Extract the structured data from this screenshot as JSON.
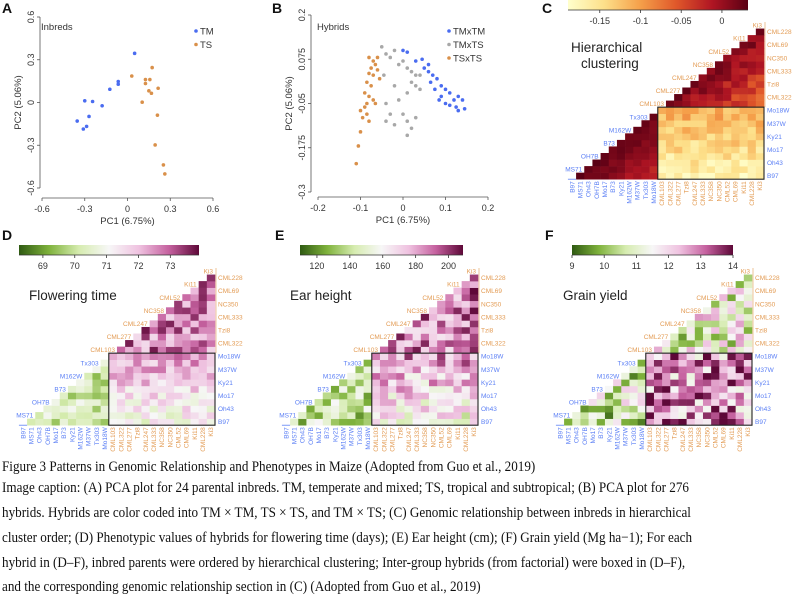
{
  "figure": {
    "panel_letters": [
      "A",
      "B",
      "C",
      "D",
      "E",
      "F"
    ],
    "colors": {
      "tm": "#4a6cf0",
      "ts": "#d9904a",
      "mixed": "#a8a8a8",
      "tm_label": "#5b7ff5",
      "ts_label": "#e39c55"
    }
  },
  "chart_data": [
    {
      "type": "scatter",
      "panel": "A",
      "title": "Inbreds",
      "xlabel": "PC1 (6.75%)",
      "ylabel": "PC2 (5.06%)",
      "xlim": [
        -0.6,
        0.6
      ],
      "ylim": [
        -0.6,
        0.6
      ],
      "xticks": [
        "-0.6",
        "-0.3",
        "0",
        "0.3",
        "0.6"
      ],
      "yticks": [
        "-0.6",
        "-0.3",
        "0",
        "0.3",
        "0.6"
      ],
      "legend": "top-right",
      "series": [
        {
          "name": "TM",
          "color": "#4a6cf0",
          "points": [
            [
              0.05,
              0.345
            ],
            [
              -0.065,
              0.147
            ],
            [
              -0.065,
              0.128
            ],
            [
              -0.124,
              0.093
            ],
            [
              -0.3,
              0.012
            ],
            [
              -0.245,
              0.007
            ],
            [
              -0.178,
              -0.023
            ],
            [
              -0.27,
              -0.098
            ],
            [
              -0.353,
              -0.13
            ],
            [
              -0.287,
              -0.168
            ],
            [
              -0.31,
              -0.186
            ]
          ]
        },
        {
          "name": "TS",
          "color": "#d9904a",
          "points": [
            [
              0.03,
              0.186
            ],
            [
              0.173,
              0.245
            ],
            [
              0.126,
              0.161
            ],
            [
              0.157,
              0.161
            ],
            [
              0.126,
              0.133
            ],
            [
              0.215,
              0.1
            ],
            [
              0.15,
              0.082
            ],
            [
              0.168,
              0.065
            ],
            [
              0.103,
              0.002
            ],
            [
              0.21,
              -0.089
            ],
            [
              0.194,
              -0.298
            ],
            [
              0.252,
              -0.438
            ],
            [
              0.262,
              -0.501
            ]
          ]
        }
      ]
    },
    {
      "type": "scatter",
      "panel": "B",
      "title": "Hybrids",
      "xlabel": "PC1 (6.75%)",
      "ylabel": "PC2 (5.06%)",
      "xlim": [
        -0.2,
        0.2
      ],
      "ylim": [
        -0.3,
        0.2
      ],
      "xticks": [
        "-0.2",
        "-0.1",
        "0",
        "0.1",
        "0.2"
      ],
      "yticks": [
        "-0.3",
        "-0.175",
        "-0.05",
        "0.075",
        "0.2"
      ],
      "legend": "top-right",
      "series": [
        {
          "name": "TMxTM",
          "color": "#4a6cf0",
          "points": [
            [
              0.0,
              0.1
            ],
            [
              0.01,
              0.095
            ],
            [
              0.03,
              0.07
            ],
            [
              0.045,
              0.075
            ],
            [
              0.05,
              0.05
            ],
            [
              0.06,
              0.04
            ],
            [
              0.07,
              0.03
            ],
            [
              0.065,
              0.01
            ],
            [
              0.08,
              0.02
            ],
            [
              0.09,
              0.0
            ],
            [
              0.075,
              -0.01
            ],
            [
              0.1,
              -0.01
            ],
            [
              0.09,
              -0.03
            ],
            [
              0.11,
              -0.02
            ],
            [
              0.12,
              -0.04
            ],
            [
              0.13,
              -0.03
            ],
            [
              0.1,
              -0.05
            ],
            [
              0.125,
              -0.06
            ],
            [
              0.14,
              -0.04
            ],
            [
              0.13,
              -0.07
            ],
            [
              0.145,
              -0.065
            ],
            [
              0.06,
              0.06
            ],
            [
              0.085,
              -0.04
            ],
            [
              0.11,
              -0.055
            ]
          ]
        },
        {
          "name": "TMxTS",
          "color": "#a8a8a8",
          "points": [
            [
              -0.05,
              0.11
            ],
            [
              -0.04,
              0.09
            ],
            [
              -0.02,
              0.1
            ],
            [
              -0.03,
              0.08
            ],
            [
              -0.01,
              0.06
            ],
            [
              0.0,
              0.07
            ],
            [
              0.01,
              0.05
            ],
            [
              0.02,
              0.04
            ],
            [
              0.03,
              0.03
            ],
            [
              0.04,
              0.03
            ],
            [
              0.02,
              0.01
            ],
            [
              0.03,
              0.0
            ],
            [
              0.04,
              -0.01
            ],
            [
              0.01,
              -0.02
            ],
            [
              -0.01,
              -0.04
            ],
            [
              -0.04,
              -0.05
            ],
            [
              -0.03,
              -0.08
            ],
            [
              -0.04,
              -0.1
            ],
            [
              0.0,
              -0.08
            ],
            [
              0.01,
              -0.1
            ],
            [
              0.02,
              -0.12
            ],
            [
              0.01,
              -0.14
            ],
            [
              -0.02,
              -0.11
            ],
            [
              0.03,
              -0.09
            ],
            [
              -0.045,
              0.03
            ],
            [
              -0.02,
              0.0
            ]
          ]
        },
        {
          "name": "TSxTS",
          "color": "#d9904a",
          "points": [
            [
              -0.08,
              0.08
            ],
            [
              -0.07,
              0.07
            ],
            [
              -0.065,
              0.06
            ],
            [
              -0.075,
              0.05
            ],
            [
              -0.06,
              0.045
            ],
            [
              -0.08,
              0.035
            ],
            [
              -0.07,
              0.03
            ],
            [
              -0.055,
              0.02
            ],
            [
              -0.085,
              0.01
            ],
            [
              -0.075,
              0.0
            ],
            [
              -0.09,
              -0.02
            ],
            [
              -0.08,
              -0.03
            ],
            [
              -0.07,
              -0.04
            ],
            [
              -0.085,
              -0.05
            ],
            [
              -0.09,
              -0.06
            ],
            [
              -0.1,
              -0.07
            ],
            [
              -0.085,
              -0.08
            ],
            [
              -0.095,
              -0.09
            ],
            [
              -0.08,
              -0.1
            ],
            [
              -0.1,
              -0.13
            ],
            [
              -0.105,
              -0.17
            ],
            [
              -0.11,
              -0.22
            ],
            [
              -0.065,
              -0.05
            ],
            [
              -0.06,
              0.08
            ]
          ]
        }
      ]
    },
    {
      "type": "heatmap",
      "panel": "C",
      "title": "Hierarchical clustering",
      "colorbar_range": [
        -0.189,
        0.032
      ],
      "colorbar_ticks": [
        "-0.15",
        "-0.1",
        "-0.05",
        "0"
      ],
      "colorbar_tick_values": [
        -0.15,
        -0.1,
        -0.05,
        0
      ],
      "colormap": [
        "#ffffcc",
        "#fde08a",
        "#f5a04a",
        "#e0582a",
        "#b01523",
        "#5a0014"
      ]
    },
    {
      "type": "heatmap",
      "panel": "D",
      "title": "Flowering time",
      "colorbar_range": [
        68.25,
        73.9
      ],
      "colorbar_ticks": [
        "69",
        "70",
        "71",
        "72",
        "73"
      ],
      "colorbar_tick_values": [
        69,
        70,
        71,
        72,
        73
      ],
      "colormap": [
        "#2f5a12",
        "#7fb23c",
        "#d6ecb0",
        "#f7f7f7",
        "#efc2e0",
        "#c5619f",
        "#5e0838"
      ]
    },
    {
      "type": "heatmap",
      "panel": "E",
      "title": "Ear height",
      "colorbar_range": [
        109.7,
        208.8
      ],
      "colorbar_ticks": [
        "120",
        "140",
        "160",
        "180",
        "200"
      ],
      "colorbar_tick_values": [
        120,
        140,
        160,
        180,
        200
      ],
      "colormap": [
        "#2f5a12",
        "#7fb23c",
        "#d6ecb0",
        "#f7f7f7",
        "#efc2e0",
        "#c5619f",
        "#5e0838"
      ]
    },
    {
      "type": "heatmap",
      "panel": "F",
      "title": "Grain yield",
      "colorbar_range": [
        9,
        14
      ],
      "colorbar_ticks": [
        "9",
        "10",
        "11",
        "12",
        "13",
        "14"
      ],
      "colorbar_tick_values": [
        9,
        10,
        11,
        12,
        13,
        14
      ],
      "colormap": [
        "#2f5a12",
        "#7fb23c",
        "#d6ecb0",
        "#f7f7f7",
        "#efc2e0",
        "#c5619f",
        "#5e0838"
      ]
    }
  ],
  "heatmap_labels": {
    "tm": [
      "B97",
      "MS71",
      "Oh43",
      "OH7B",
      "Mo17",
      "B73",
      "Ky21",
      "M162W",
      "M37W",
      "Tx303",
      "Mo18W"
    ],
    "ts": [
      "CML103",
      "CML322",
      "CML277",
      "Tzi8",
      "CML247",
      "CML333",
      "NC358",
      "NC350",
      "CML52",
      "CML69",
      "Ki11",
      "CML228",
      "Ki3"
    ]
  },
  "caption": {
    "lines": [
      "Figure 3 Patterns in Genomic Relationship and Phenotypes in Maize (Adopted from Guo et al., 2019)",
      "Image caption: (A) PCA plot for 24 parental inbreds. TM, temperate and mixed; TS, tropical and subtropical; (B) PCA plot for 276",
      "hybrids. Hybrids are color coded into TM × TM, TS × TS, and TM × TS; (C) Genomic relationship between inbreds in hierarchical",
      "cluster order; (D) Phenotypic values of hybrids for flowering time (days); (E) Ear height (cm); (F) Grain yield (Mg ha−1); For each",
      "hybrid in (D–F), inbred parents were ordered by hierarchical clustering; Inter-group hybrids (from factorial) were boxed in (D–F),",
      "and the corresponding genomic relationship section in (C) (Adopted from Guo et al., 2019)"
    ]
  }
}
